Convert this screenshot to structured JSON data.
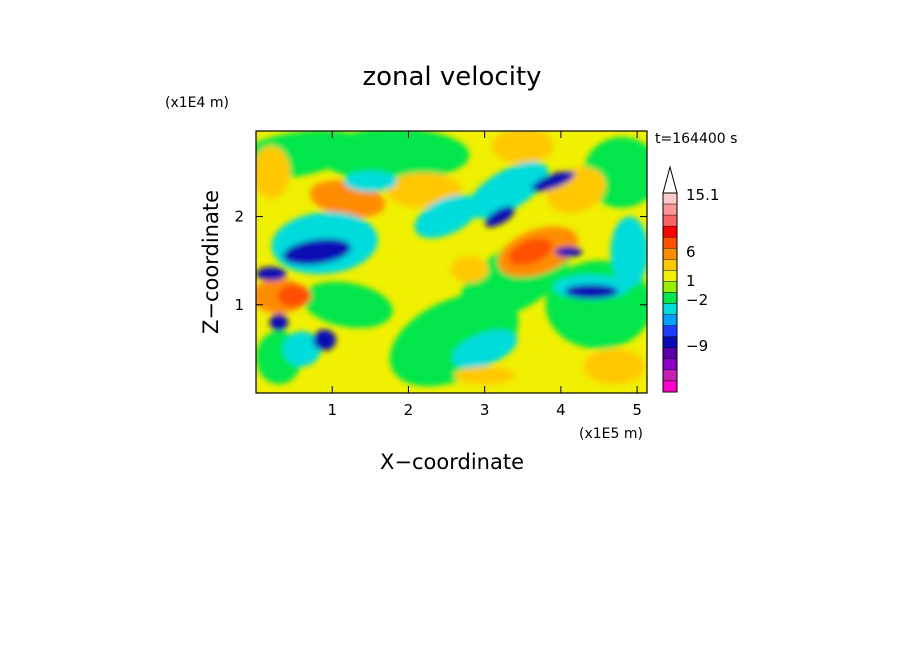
{
  "chart_data": {
    "type": "heatmap",
    "title": "zonal velocity",
    "xlabel": "X−coordinate",
    "ylabel": "Z−coordinate",
    "x_scale_label": "(x1E5 m)",
    "y_scale_label": "(x1E4 m)",
    "time_label": "t=164400 s",
    "xlim": [
      0,
      5.13
    ],
    "ylim": [
      0,
      2.97
    ],
    "x_ticks": [
      1,
      2,
      3,
      4,
      5
    ],
    "x_tick_labels": [
      "1",
      "2",
      "3",
      "4",
      "5"
    ],
    "y_ticks": [
      1,
      2
    ],
    "y_tick_labels": [
      "1",
      "2"
    ],
    "colorbar": {
      "levels": [
        {
          "color": "#ff00c8"
        },
        {
          "color": "#c81eb4"
        },
        {
          "color": "#8c00c8"
        },
        {
          "color": "#5a00aa"
        },
        {
          "color": "#0a0ab4"
        },
        {
          "color": "#1e3cff"
        },
        {
          "color": "#00a0ff"
        },
        {
          "color": "#00dcdc"
        },
        {
          "color": "#00e64b"
        },
        {
          "color": "#96f000"
        },
        {
          "color": "#f0f000"
        },
        {
          "color": "#ffc800"
        },
        {
          "color": "#ff8c00"
        },
        {
          "color": "#ff5000"
        },
        {
          "color": "#ff0000"
        },
        {
          "color": "#ff6464"
        },
        {
          "color": "#ff9696"
        },
        {
          "color": "#ffc8c8"
        }
      ],
      "labels": [
        {
          "text": "15.1",
          "value": 15.1
        },
        {
          "text": "6",
          "value": 6
        },
        {
          "text": "1",
          "value": 1
        },
        {
          "text": "−2",
          "value": -2
        },
        {
          "text": "−9",
          "value": -9
        }
      ]
    },
    "palette": {
      "strong_positive": "#ff5000",
      "positive": "#ff8c00",
      "weak_positive": "#ffc800",
      "near_zero": "#f0f000",
      "weak_negative": "#00e64b",
      "negative": "#00dcdc",
      "strong_negative": "#0a0ab4"
    }
  }
}
